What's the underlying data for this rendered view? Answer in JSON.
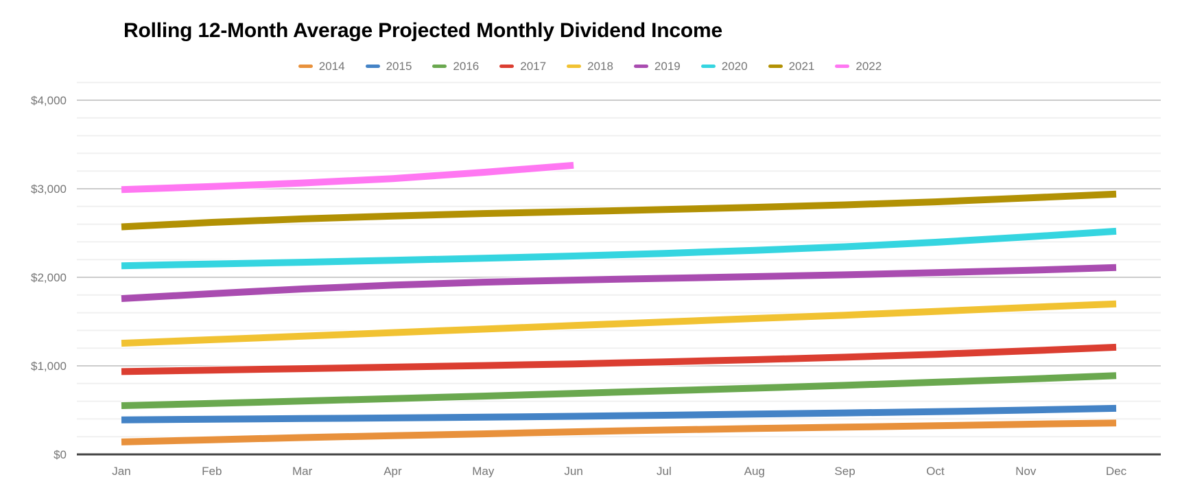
{
  "title": "Rolling 12-Month Average Projected Monthly Dividend Income",
  "chart_data": {
    "type": "line",
    "title": "Rolling 12-Month Average Projected Monthly Dividend Income",
    "categories": [
      "Jan",
      "Feb",
      "Mar",
      "Apr",
      "May",
      "Jun",
      "Jul",
      "Aug",
      "Sep",
      "Oct",
      "Nov",
      "Dec"
    ],
    "series": [
      {
        "name": "2014",
        "color": "#E8913C",
        "values": [
          140,
          165,
          190,
          212,
          232,
          255,
          275,
          292,
          308,
          323,
          340,
          355
        ]
      },
      {
        "name": "2015",
        "color": "#4483C6",
        "values": [
          390,
          398,
          405,
          412,
          420,
          430,
          442,
          455,
          468,
          482,
          500,
          520
        ]
      },
      {
        "name": "2016",
        "color": "#6AA84F",
        "values": [
          550,
          575,
          602,
          630,
          658,
          688,
          718,
          748,
          780,
          815,
          850,
          890
        ]
      },
      {
        "name": "2017",
        "color": "#DB3E31",
        "values": [
          935,
          952,
          968,
          985,
          1003,
          1022,
          1045,
          1070,
          1098,
          1130,
          1168,
          1210
        ]
      },
      {
        "name": "2018",
        "color": "#F1C232",
        "values": [
          1255,
          1295,
          1335,
          1375,
          1415,
          1455,
          1495,
          1535,
          1572,
          1615,
          1658,
          1700
        ]
      },
      {
        "name": "2019",
        "color": "#A94CB0",
        "values": [
          1760,
          1815,
          1868,
          1912,
          1945,
          1968,
          1988,
          2008,
          2028,
          2052,
          2078,
          2110
        ]
      },
      {
        "name": "2020",
        "color": "#35D5E0",
        "values": [
          2130,
          2150,
          2170,
          2192,
          2215,
          2240,
          2270,
          2305,
          2345,
          2395,
          2455,
          2520
        ]
      },
      {
        "name": "2021",
        "color": "#B29104",
        "values": [
          2570,
          2620,
          2660,
          2692,
          2720,
          2742,
          2765,
          2790,
          2818,
          2852,
          2895,
          2940
        ]
      },
      {
        "name": "2022",
        "color": "#FF77F2",
        "values": [
          2990,
          3025,
          3065,
          3115,
          3185,
          3265
        ]
      }
    ],
    "xlabel": "",
    "ylabel": "",
    "y_ticks": [
      {
        "label": "$0",
        "value": 0
      },
      {
        "label": "$1,000",
        "value": 1000
      },
      {
        "label": "$2,000",
        "value": 2000
      },
      {
        "label": "$3,000",
        "value": 3000
      },
      {
        "label": "$4,000",
        "value": 4000
      }
    ],
    "ylim": [
      0,
      4200
    ],
    "y_major_step": 1000,
    "y_minor_step": 200,
    "grid": true,
    "legend_position": "top"
  },
  "colors": {
    "title_text": "#000000",
    "axis_text": "#757575",
    "grid_major": "#cccccc",
    "grid_minor": "#f0f0f0",
    "axis_line": "#424242",
    "background": "#ffffff"
  }
}
